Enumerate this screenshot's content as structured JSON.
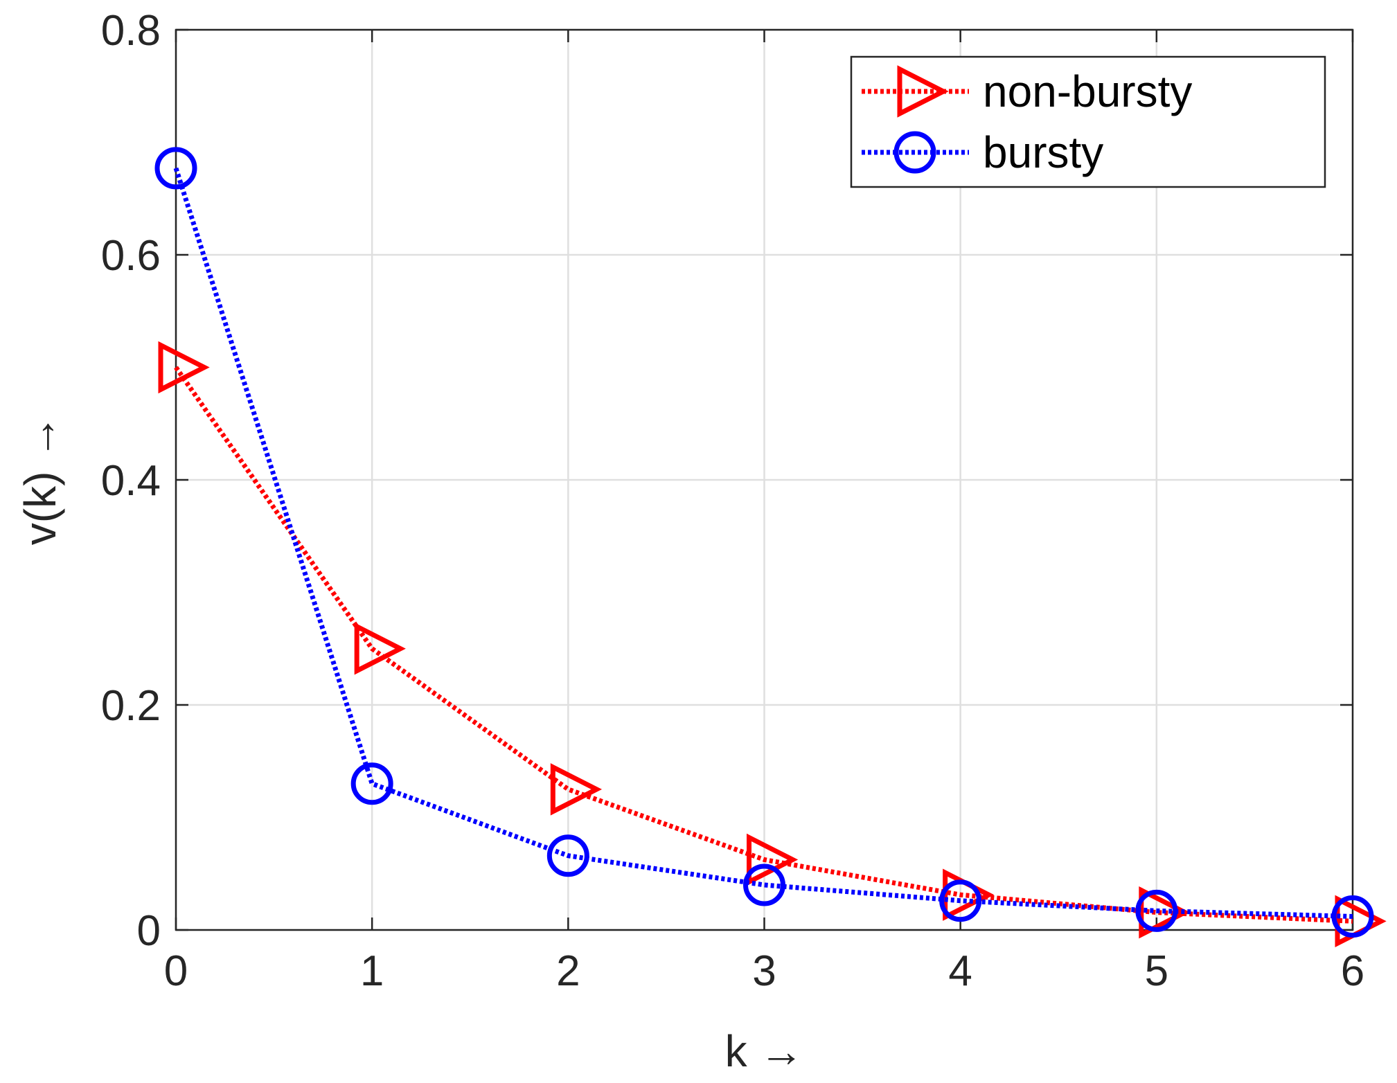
{
  "chart_data": {
    "type": "line",
    "xlabel": "k →",
    "ylabel": "v(k) →",
    "x": [
      0,
      1,
      2,
      3,
      4,
      5,
      6
    ],
    "xlim": [
      0,
      6
    ],
    "ylim": [
      0,
      0.8
    ],
    "xticks": [
      "0",
      "1",
      "2",
      "3",
      "4",
      "5",
      "6"
    ],
    "yticks": [
      "0",
      "0.2",
      "0.4",
      "0.6",
      "0.8"
    ],
    "grid": true,
    "legend_position": "top-right",
    "series": [
      {
        "name": "non-bursty",
        "values": [
          0.5,
          0.25,
          0.125,
          0.0625,
          0.03125,
          0.0156,
          0.0078
        ],
        "color": "#ff0000",
        "marker": "triangle-right",
        "line_style": "dotted"
      },
      {
        "name": "bursty",
        "values": [
          0.677,
          0.13,
          0.066,
          0.04,
          0.026,
          0.017,
          0.012
        ],
        "color": "#0000ff",
        "marker": "circle",
        "line_style": "dotted"
      }
    ]
  }
}
